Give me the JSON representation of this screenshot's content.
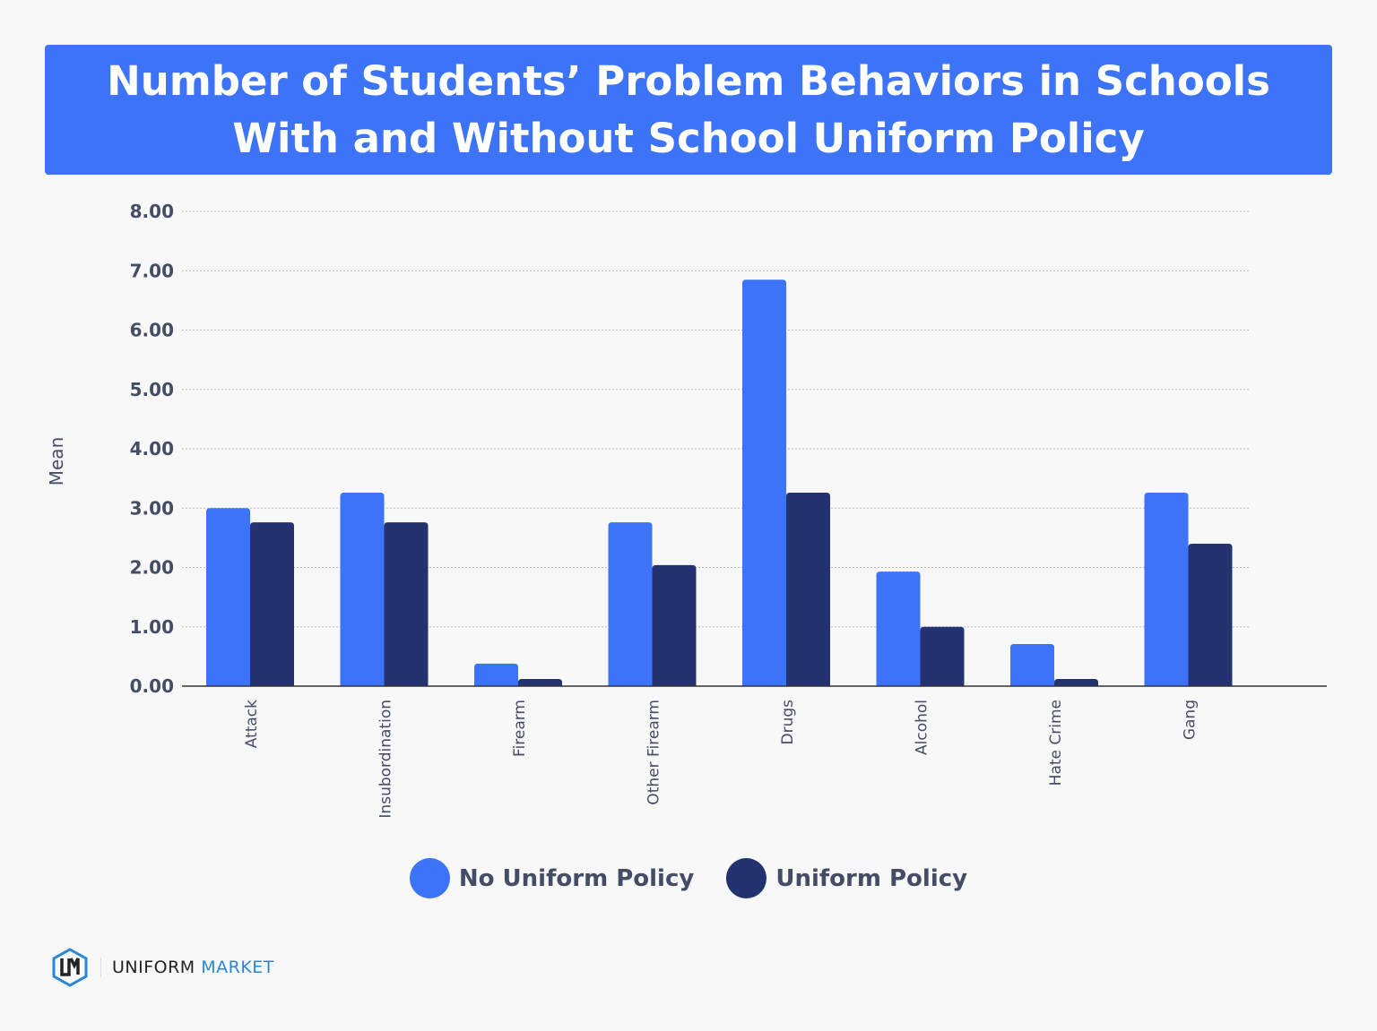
{
  "title": "Number of Students’ Problem Behaviors in Schools With and Without School Uniform Policy",
  "chart_data": {
    "type": "bar",
    "title": "Number of Students’ Problem Behaviors in Schools With and Without School Uniform Policy",
    "xlabel": "",
    "ylabel": "Mean",
    "ylim": [
      0,
      8
    ],
    "yticks": [
      "0.00",
      "1.00",
      "2.00",
      "3.00",
      "4.00",
      "5.00",
      "6.00",
      "7.00",
      "8.00"
    ],
    "grid": true,
    "legend_position": "bottom",
    "categories": [
      "Attack",
      "Insubordination",
      "Firearm",
      "Other Firearm",
      "Drugs",
      "Alcohol",
      "Hate Crime",
      "Gang"
    ],
    "series": [
      {
        "name": "No Uniform Policy",
        "color": "#3d74f7",
        "values": [
          3.0,
          3.26,
          0.38,
          2.76,
          6.85,
          1.93,
          0.71,
          3.26
        ]
      },
      {
        "name": "Uniform Policy",
        "color": "#223370",
        "values": [
          2.76,
          2.76,
          0.12,
          2.04,
          3.26,
          1.0,
          0.12,
          2.4
        ]
      }
    ]
  },
  "logo": {
    "word1": "UNIFORM",
    "word2": "MARKET"
  }
}
